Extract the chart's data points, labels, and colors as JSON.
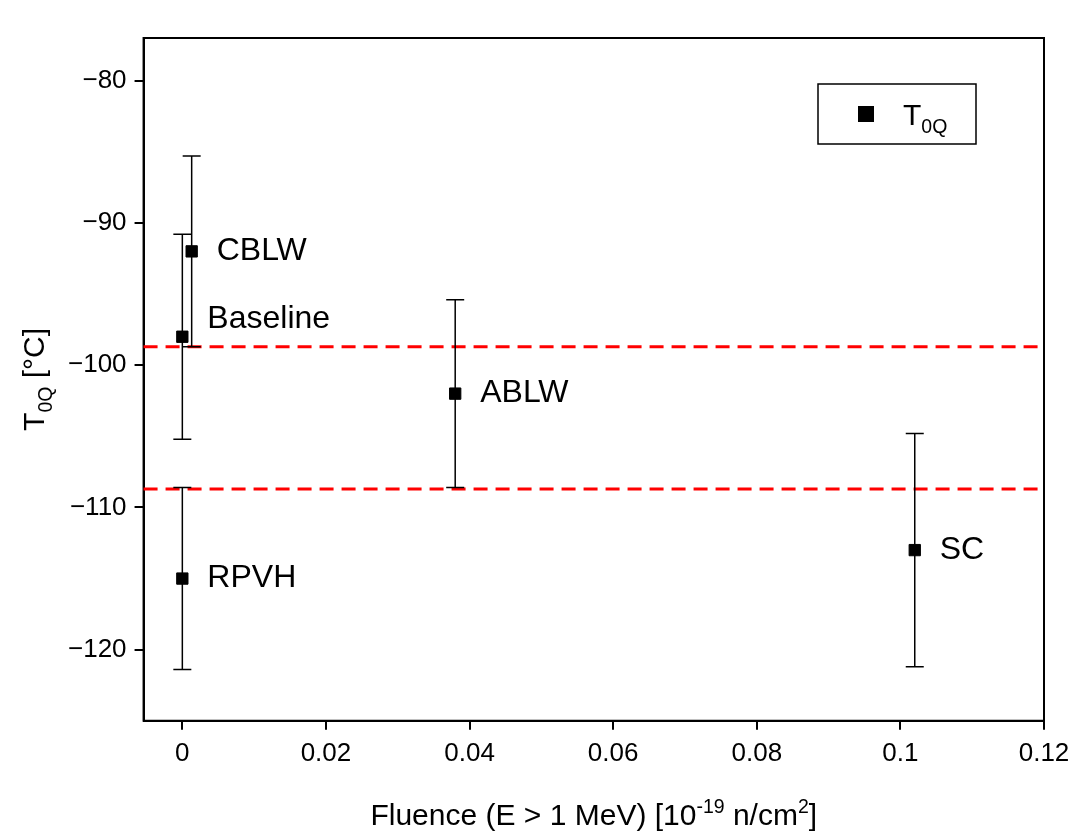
{
  "chart_data": {
    "type": "scatter",
    "xlabel": "Fluence (E > 1 MeV) [10$^{-19}$ n/cm$^{2}$]",
    "ylabel": "T$_{0Q}$ [°C]",
    "series": [
      {
        "name": "T$_{0Q}$",
        "color": "#000000",
        "x": [
          0,
          0.0013,
          0.038,
          0,
          0.102
        ],
        "values": [
          -98,
          -92,
          -102,
          -115,
          -113
        ],
        "errors": [
          7.2,
          6.7,
          6.6,
          6.4,
          8.2
        ]
      }
    ],
    "xlim": [
      -0.0054,
      0.12
    ],
    "ylim": [
      -125,
      -77
    ],
    "xticks": [
      0,
      0.02,
      0.04,
      0.06,
      0.08,
      0.1,
      0.12
    ],
    "yticks": [
      {
        "value": -120,
        "label": "−120"
      },
      {
        "value": -110,
        "label": "−110"
      },
      {
        "value": -100,
        "label": "−100"
      },
      {
        "value": -90,
        "label": "−90"
      },
      {
        "value": -80,
        "label": "−80"
      }
    ],
    "ref_lines": [
      {
        "axis": "y",
        "value": -98.7,
        "color": "#ff0000",
        "line_style": "dashed"
      },
      {
        "axis": "y",
        "value": -108.7,
        "color": "#ff0000",
        "line_style": "dashed"
      }
    ],
    "annotations": [
      {
        "text": "CBLW",
        "x": 0.0013,
        "y": -92
      },
      {
        "text": "Baseline",
        "x": 0,
        "y": -96.8
      },
      {
        "text": "ABLW",
        "x": 0.038,
        "y": -102
      },
      {
        "text": "RPVH",
        "x": 0,
        "y": -115
      },
      {
        "text": "SC",
        "x": 0.102,
        "y": -113
      }
    ],
    "marker": "square",
    "grid": false,
    "legend": "top right"
  }
}
